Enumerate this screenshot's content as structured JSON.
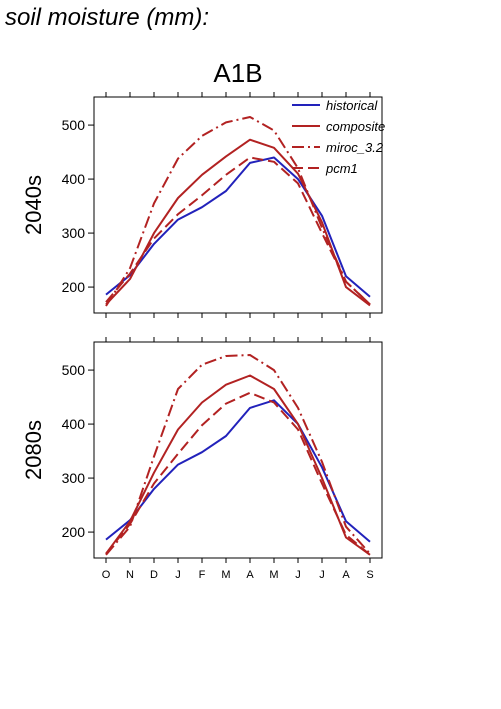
{
  "page": {
    "title": "soil moisture (mm):"
  },
  "figure": {
    "scenario": "A1B"
  },
  "chart_data": [
    {
      "type": "line",
      "panel_label": "2040s",
      "categories": [
        "O",
        "N",
        "D",
        "J",
        "F",
        "M",
        "A",
        "M",
        "J",
        "J",
        "A",
        "S"
      ],
      "ylim": [
        152,
        552
      ],
      "yticks": [
        200,
        300,
        400,
        500
      ],
      "legend_position": "top-right",
      "series": [
        {
          "name": "historical",
          "color": "#2222bb",
          "style": "solid",
          "values": [
            186,
            222,
            280,
            325,
            348,
            378,
            430,
            440,
            400,
            332,
            220,
            182
          ]
        },
        {
          "name": "composite",
          "color": "#b22222",
          "style": "solid",
          "values": [
            168,
            215,
            300,
            365,
            408,
            442,
            473,
            458,
            410,
            320,
            200,
            166
          ]
        },
        {
          "name": "miroc_3.2",
          "color": "#b22222",
          "style": "dashdot",
          "values": [
            165,
            235,
            355,
            438,
            480,
            505,
            515,
            490,
            420,
            310,
            210,
            168
          ]
        },
        {
          "name": "pcm1",
          "color": "#b22222",
          "style": "dash",
          "values": [
            172,
            225,
            290,
            335,
            370,
            408,
            440,
            432,
            392,
            300,
            210,
            168
          ]
        }
      ]
    },
    {
      "type": "line",
      "panel_label": "2080s",
      "categories": [
        "O",
        "N",
        "D",
        "J",
        "F",
        "M",
        "A",
        "M",
        "J",
        "J",
        "A",
        "S"
      ],
      "ylim": [
        152,
        552
      ],
      "yticks": [
        200,
        300,
        400,
        500
      ],
      "series": [
        {
          "name": "historical",
          "color": "#2222bb",
          "style": "solid",
          "values": [
            186,
            222,
            280,
            325,
            348,
            378,
            430,
            444,
            400,
            320,
            220,
            182
          ]
        },
        {
          "name": "composite",
          "color": "#b22222",
          "style": "solid",
          "values": [
            160,
            220,
            310,
            390,
            440,
            473,
            490,
            465,
            400,
            300,
            190,
            158
          ]
        },
        {
          "name": "miroc_3.2",
          "color": "#b22222",
          "style": "dashdot",
          "values": [
            158,
            210,
            340,
            465,
            510,
            526,
            528,
            500,
            430,
            330,
            210,
            160
          ]
        },
        {
          "name": "pcm1",
          "color": "#b22222",
          "style": "dash",
          "values": [
            160,
            215,
            290,
            345,
            398,
            438,
            458,
            440,
            390,
            290,
            195,
            158
          ]
        }
      ]
    }
  ]
}
